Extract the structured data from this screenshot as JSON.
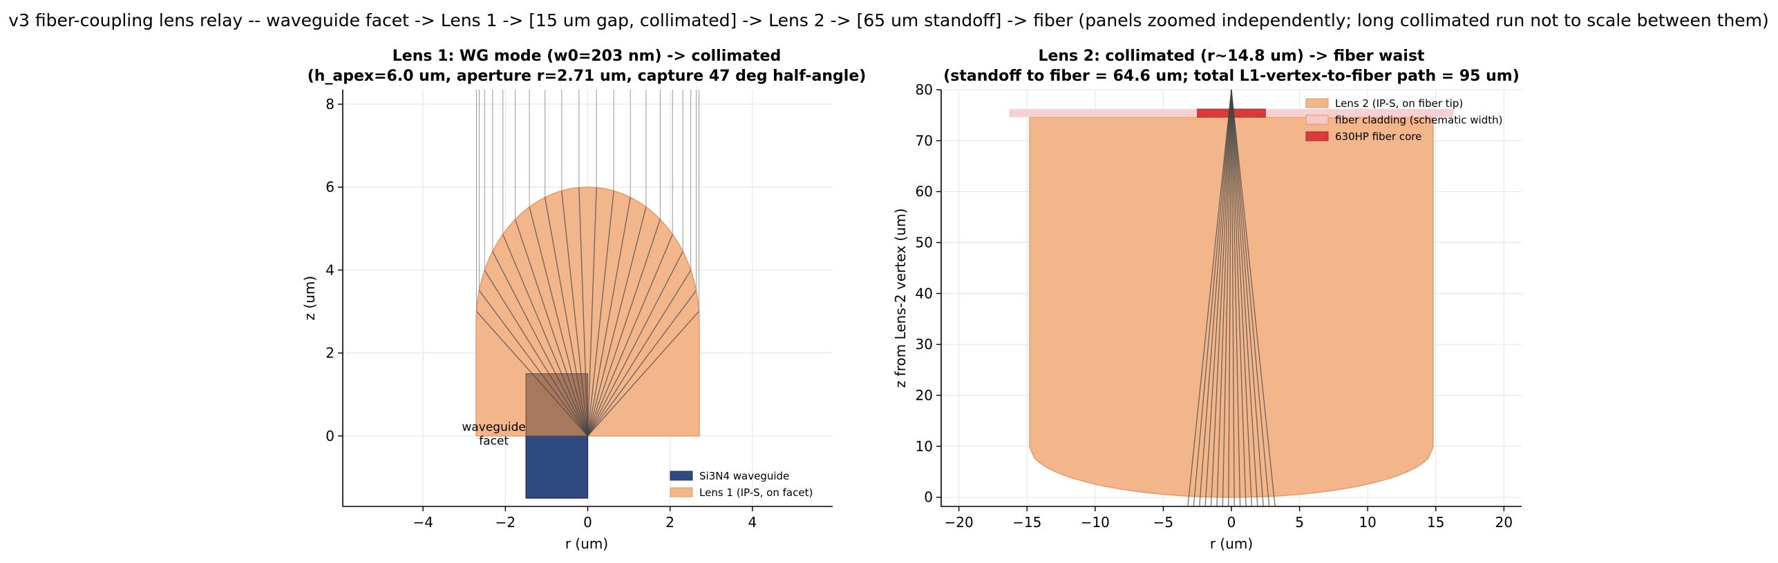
{
  "figure": {
    "suptitle": "v3 fiber-coupling lens relay -- waveguide facet -> Lens 1 -> [15 um gap, collimated] -> Lens 2 -> [65 um standoff] -> fiber (panels zoomed independently; long collimated run not to scale between them)"
  },
  "colors": {
    "lens": "#f2b68a",
    "lens_edge": "#e39a63",
    "waveguide": "#2e4a7e",
    "waveguide_overlap": "#a8785e",
    "cladding": "#f6c9c9",
    "core": "#d93a3a",
    "ray": "#444444"
  },
  "chart_data": [
    {
      "type": "scatter",
      "title_line1": "Lens 1: WG mode (w0=203 nm) -> collimated",
      "title_line2": "(h_apex=6.0 um, aperture r=2.71 um, capture 47 deg half-angle)",
      "xlabel": "r (um)",
      "ylabel": "z (um)",
      "xlim": [
        -5.95,
        5.95
      ],
      "ylim": [
        -1.7,
        8.35
      ],
      "xticks": [
        -4,
        -2,
        0,
        2,
        4
      ],
      "xtick_labels": [
        "−4",
        "−2",
        "0",
        "2",
        "4"
      ],
      "yticks": [
        0,
        2,
        4,
        6,
        8
      ],
      "ytick_labels": [
        "0",
        "2",
        "4",
        "6",
        "8"
      ],
      "grid": true,
      "legend_position": "lower-right",
      "legend": [
        {
          "label": "Si3N4 waveguide",
          "color": "#2e4a7e"
        },
        {
          "label": "Lens 1 (IP-S, on facet)",
          "color": "#f2b68a"
        }
      ],
      "annotation_line1": "waveguide",
      "annotation_line2": "facet",
      "lens": {
        "apex_height": 6.0,
        "aperture_radius": 2.71,
        "edge_height": 2.75
      },
      "waveguide": {
        "r_min": -1.5,
        "r_max": 0.0,
        "z_min": -1.5,
        "z_max": 1.5
      },
      "rays": {
        "count": 20,
        "source_z": 0.0,
        "exit_z": 8.35
      }
    },
    {
      "type": "scatter",
      "title_line1": "Lens 2: collimated (r~14.8 um) -> fiber waist",
      "title_line2": "(standoff to fiber = 64.6 um; total L1-vertex-to-fiber path = 95 um)",
      "xlabel": "r (um)",
      "ylabel": "z from Lens-2 vertex (um)",
      "xlim": [
        -21.3,
        21.3
      ],
      "ylim": [
        -1.8,
        80
      ],
      "xticks": [
        -20,
        -15,
        -10,
        -5,
        0,
        5,
        10,
        15,
        20
      ],
      "xtick_labels": [
        "−20",
        "−15",
        "−10",
        "−5",
        "0",
        "5",
        "10",
        "15",
        "20"
      ],
      "yticks": [
        0,
        10,
        20,
        30,
        40,
        50,
        60,
        70,
        80
      ],
      "ytick_labels": [
        "0",
        "10",
        "20",
        "30",
        "40",
        "50",
        "60",
        "70",
        "80"
      ],
      "grid": true,
      "legend_position": "upper-right",
      "legend": [
        {
          "label": "Lens 2 (IP-S, on fiber tip)",
          "color": "#f2b68a"
        },
        {
          "label": "fiber cladding (schematic width)",
          "color": "#f6c9c9"
        },
        {
          "label": "630HP fiber core",
          "color": "#d93a3a"
        }
      ],
      "lens": {
        "aperture_radius": 14.8,
        "sag_height": 9.8,
        "top_z": 74.6
      },
      "cladding": {
        "r_min": -16.3,
        "r_max": 16.3,
        "z_min": 74.6,
        "z_max": 76.2
      },
      "core": {
        "r_min": -2.5,
        "r_max": 2.5,
        "z_min": 74.6,
        "z_max": 76.2
      },
      "rays": {
        "count": 16,
        "start_z": -1.8,
        "start_r_max": 3.2,
        "focus_z": 80.0
      }
    }
  ]
}
